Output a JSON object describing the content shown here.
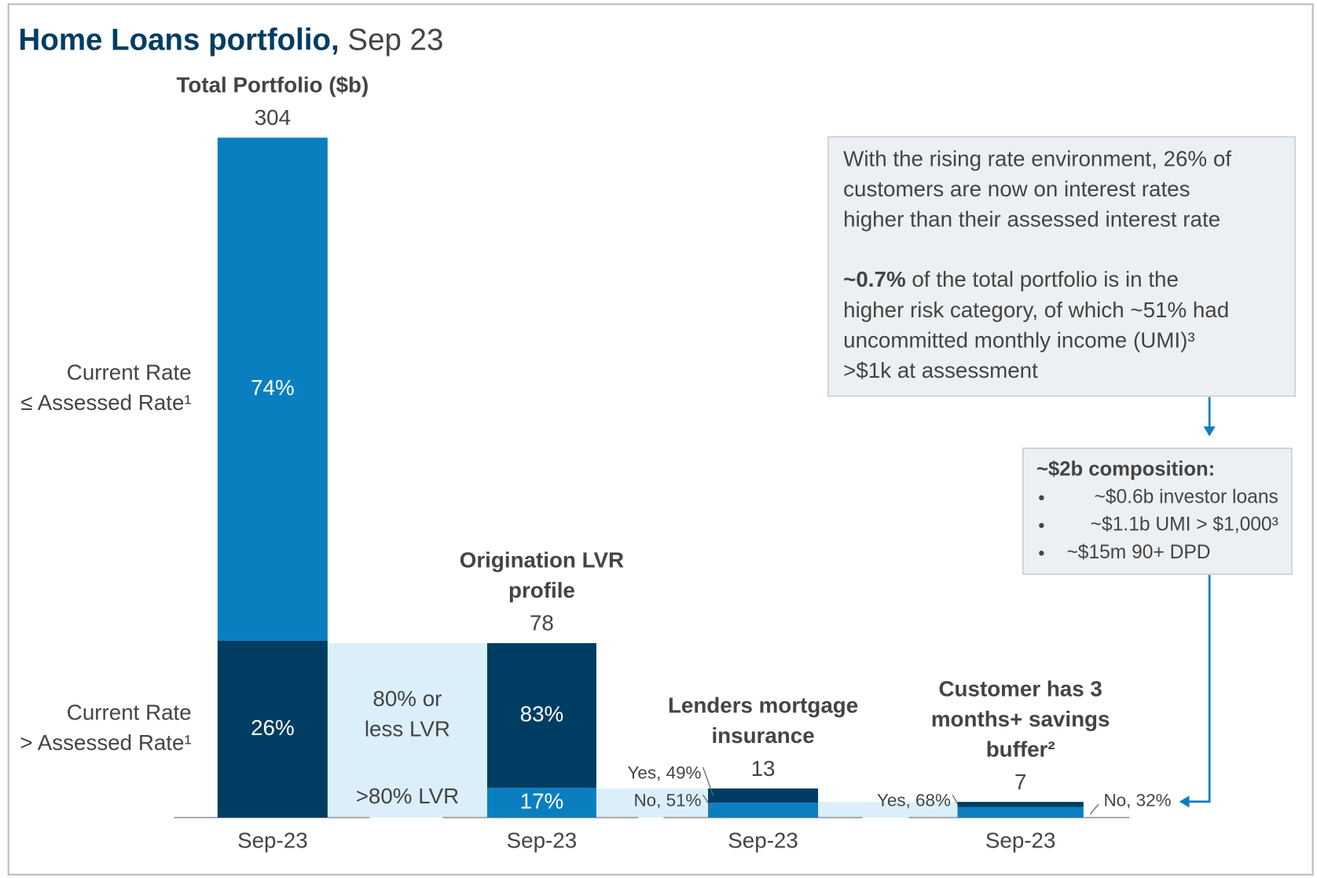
{
  "chart_data": {
    "type": "bar",
    "title": "Home Loans portfolio,",
    "subtitle": "Sep 23",
    "bars": [
      {
        "title": [
          "Total Portfolio ($b)"
        ],
        "total": 304,
        "category": "Sep-23",
        "segments": [
          {
            "name": [
              "Current Rate",
              "> Assessed Rate¹"
            ],
            "value": 26,
            "value_label": "26%",
            "color": "#003d63",
            "label_side": "inside"
          },
          {
            "name": [
              "Current Rate",
              "≤ Assessed Rate¹"
            ],
            "value": 74,
            "value_label": "74%",
            "color": "#0a7fc0",
            "label_side": "inside"
          }
        ]
      },
      {
        "title": [
          "Origination LVR",
          "profile"
        ],
        "total": 78,
        "category": "Sep-23",
        "segments": [
          {
            "name": [
              ">80% LVR"
            ],
            "value": 17,
            "value_label": "17%",
            "color": "#0a7fc0",
            "label_side": "inside"
          },
          {
            "name": [
              "80% or",
              "less LVR"
            ],
            "value": 83,
            "value_label": "83%",
            "color": "#003d63",
            "label_side": "inside"
          }
        ]
      },
      {
        "title": [
          "Lenders mortgage",
          "insurance"
        ],
        "total": 13,
        "category": "Sep-23",
        "segments": [
          {
            "value": 51,
            "value_label": "No, 51%",
            "color": "#0a7fc0",
            "label_side": "left"
          },
          {
            "value": 49,
            "value_label": "Yes, 49%",
            "color": "#003d63",
            "label_side": "left"
          }
        ]
      },
      {
        "title": [
          "Customer has 3",
          "months+ savings",
          "buffer²"
        ],
        "total": 7,
        "category": "Sep-23",
        "segments": [
          {
            "value": 68,
            "value_label": "Yes, 68%",
            "color": "#0a7fc0",
            "label_side": "left"
          },
          {
            "value": 32,
            "value_label": "No, 32%",
            "color": "#003d63",
            "label_side": "right"
          }
        ]
      }
    ],
    "connector_color": "#dbeffa",
    "annotations": {
      "note_1": [
        "With the rising rate environment, 26% of",
        "customers are now on interest rates",
        "higher than their assessed interest rate"
      ],
      "note_2_bold": "~0.7%",
      "note_2": [
        " of the total portfolio is in the",
        "higher risk category, of which ~51% had",
        "uncommitted monthly income (UMI)³",
        ">$1k at assessment"
      ],
      "composition_title": "~$2b composition:",
      "composition": [
        "~$0.6b investor loans",
        "~$1.1b UMI > $1,000³",
        "~$15m 90+ DPD"
      ]
    }
  }
}
